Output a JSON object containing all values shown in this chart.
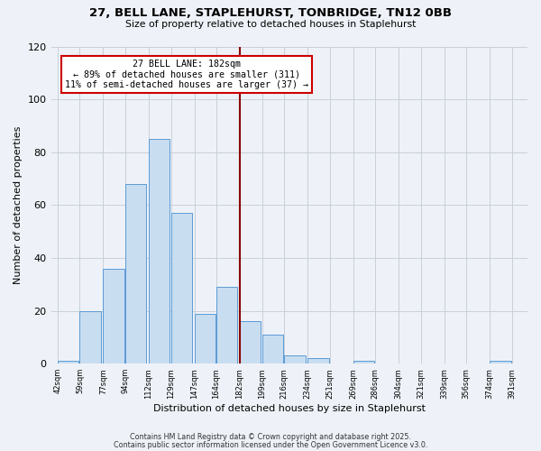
{
  "title": "27, BELL LANE, STAPLEHURST, TONBRIDGE, TN12 0BB",
  "subtitle": "Size of property relative to detached houses in Staplehurst",
  "xlabel": "Distribution of detached houses by size in Staplehurst",
  "ylabel": "Number of detached properties",
  "bins": [
    42,
    59,
    77,
    94,
    112,
    129,
    147,
    164,
    182,
    199,
    216,
    234,
    251,
    269,
    286,
    304,
    321,
    339,
    356,
    374,
    391
  ],
  "counts": [
    1,
    20,
    36,
    68,
    85,
    57,
    19,
    29,
    16,
    11,
    3,
    2,
    0,
    1,
    0,
    0,
    0,
    0,
    0,
    1
  ],
  "bar_color": "#c8ddf0",
  "bar_edge_color": "#5b9bd5",
  "grid_color": "#c8cfd8",
  "background_color": "#eef2f8",
  "vline_x": 182,
  "vline_color": "#8b0000",
  "annotation_title": "27 BELL LANE: 182sqm",
  "annotation_line1": "← 89% of detached houses are smaller (311)",
  "annotation_line2": "11% of semi-detached houses are larger (37) →",
  "annotation_box_color": "#ffffff",
  "annotation_box_edge": "#cc0000",
  "ylim": [
    0,
    120
  ],
  "yticks": [
    0,
    20,
    40,
    60,
    80,
    100,
    120
  ],
  "tick_labels": [
    "42sqm",
    "59sqm",
    "77sqm",
    "94sqm",
    "112sqm",
    "129sqm",
    "147sqm",
    "164sqm",
    "182sqm",
    "199sqm",
    "216sqm",
    "234sqm",
    "251sqm",
    "269sqm",
    "286sqm",
    "304sqm",
    "321sqm",
    "339sqm",
    "356sqm",
    "374sqm",
    "391sqm"
  ],
  "footer1": "Contains HM Land Registry data © Crown copyright and database right 2025.",
  "footer2": "Contains public sector information licensed under the Open Government Licence v3.0."
}
